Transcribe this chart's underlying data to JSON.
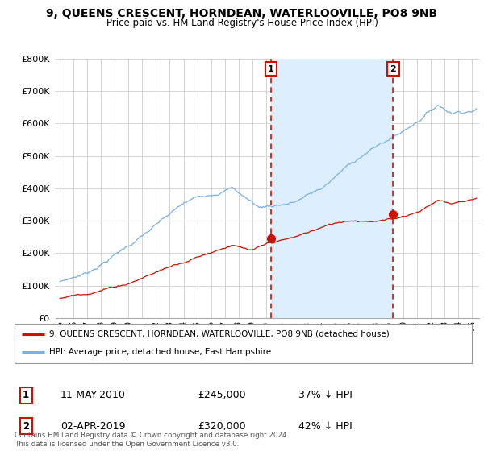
{
  "title": "9, QUEENS CRESCENT, HORNDEAN, WATERLOOVILLE, PO8 9NB",
  "subtitle": "Price paid vs. HM Land Registry's House Price Index (HPI)",
  "ytick_values": [
    0,
    100000,
    200000,
    300000,
    400000,
    500000,
    600000,
    700000,
    800000
  ],
  "ylim": [
    0,
    800000
  ],
  "xlim_start": 1994.7,
  "xlim_end": 2025.5,
  "background_color": "#ffffff",
  "plot_bg_color": "#ffffff",
  "shade_color": "#ddeeff",
  "hpi_color": "#7ab0e0",
  "sale_color": "#cc1100",
  "grid_color": "#cccccc",
  "marker1_x": 2010.36,
  "marker1_y": 245000,
  "marker2_x": 2019.25,
  "marker2_y": 320000,
  "annotation1_date": "11-MAY-2010",
  "annotation1_price": "£245,000",
  "annotation1_pct": "37% ↓ HPI",
  "annotation2_date": "02-APR-2019",
  "annotation2_price": "£320,000",
  "annotation2_pct": "42% ↓ HPI",
  "legend_line1": "9, QUEENS CRESCENT, HORNDEAN, WATERLOOVILLE, PO8 9NB (detached house)",
  "legend_line2": "HPI: Average price, detached house, East Hampshire",
  "footer": "Contains HM Land Registry data © Crown copyright and database right 2024.\nThis data is licensed under the Open Government Licence v3.0."
}
